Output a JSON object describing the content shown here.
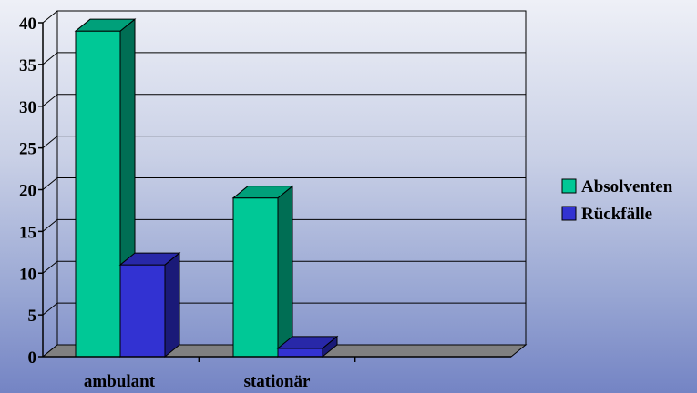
{
  "chart_data": {
    "type": "bar",
    "style": "3d-clustered-column",
    "categories": [
      "ambulant",
      "stationär"
    ],
    "series": [
      {
        "name": "Absolventen",
        "values": [
          39,
          19
        ],
        "color": "#00c896",
        "side_color": "#006e54",
        "top_color": "#00a07a"
      },
      {
        "name": "Rückfälle",
        "values": [
          11,
          1
        ],
        "color": "#3232d2",
        "side_color": "#1a1a78",
        "top_color": "#2828a8"
      }
    ],
    "ylim": [
      0,
      40
    ],
    "yticks": [
      0,
      5,
      10,
      15,
      20,
      25,
      30,
      35,
      40
    ],
    "grid": true,
    "legend_position": "right",
    "colors": {
      "floor": "#808080",
      "gridline": "#000000"
    }
  }
}
